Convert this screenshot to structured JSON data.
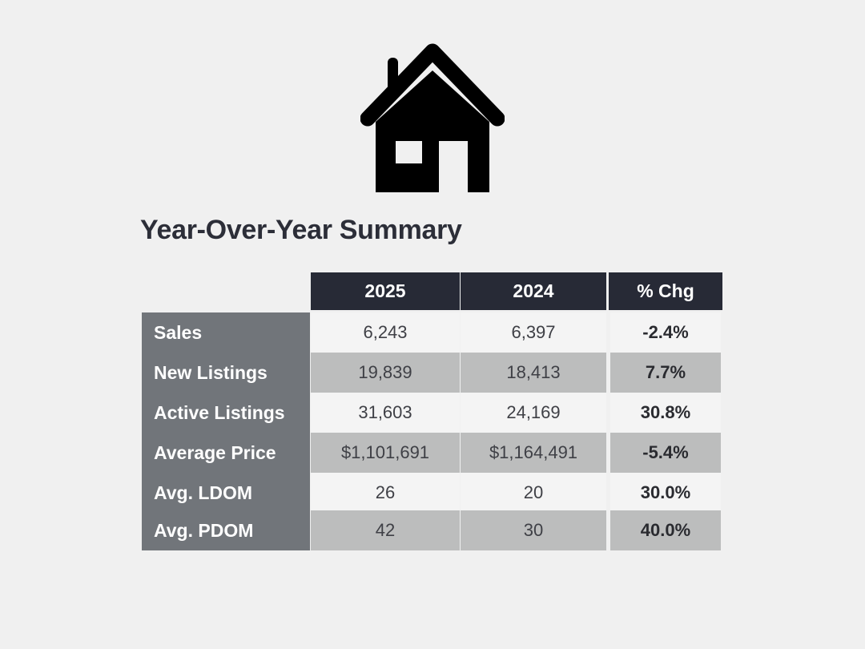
{
  "icon": "house-icon",
  "title": "Year-Over-Year Summary",
  "table": {
    "headers": [
      "2025",
      "2024",
      "% Chg"
    ],
    "rows": [
      {
        "label": "Sales",
        "v2025": "6,243",
        "v2024": "6,397",
        "chg": "-2.4%"
      },
      {
        "label": "New Listings",
        "v2025": "19,839",
        "v2024": "18,413",
        "chg": "7.7%"
      },
      {
        "label": "Active Listings",
        "v2025": "31,603",
        "v2024": "24,169",
        "chg": "30.8%"
      },
      {
        "label": "Average Price",
        "v2025": "$1,101,691",
        "v2024": "$1,164,491",
        "chg": "-5.4%"
      },
      {
        "label": "Avg. LDOM",
        "v2025": "26",
        "v2024": "20",
        "chg": "30.0%"
      },
      {
        "label": "Avg. PDOM",
        "v2025": "42",
        "v2024": "30",
        "chg": "40.0%"
      }
    ]
  },
  "colors": {
    "background": "#f0f0f0",
    "header": "#272a36",
    "label_column": "#71757a",
    "row_light": "#f4f4f4",
    "row_dark": "#bcbdbd"
  }
}
